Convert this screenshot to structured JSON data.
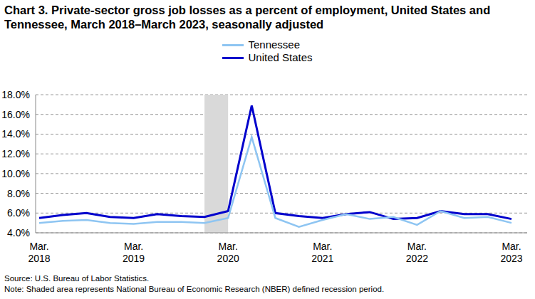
{
  "chart_data": {
    "type": "line",
    "title": "Chart 3. Private-sector gross job losses as a percent of employment, United States and Tennessee, March 2018–March 2023, seasonally adjusted",
    "categories": [
      "Mar. 2018",
      null,
      null,
      null,
      "Mar. 2019",
      null,
      null,
      null,
      "Mar. 2020",
      null,
      null,
      null,
      "Mar. 2021",
      null,
      null,
      null,
      "Mar. 2022",
      null,
      null,
      null,
      "Mar. 2023"
    ],
    "series": [
      {
        "name": "United States",
        "color": "#0000cc",
        "values": [
          5.5,
          5.8,
          6.0,
          5.6,
          5.5,
          5.9,
          5.7,
          5.6,
          6.2,
          16.9,
          6.0,
          5.7,
          5.5,
          5.9,
          6.1,
          5.4,
          5.5,
          6.2,
          5.9,
          5.9,
          5.4
        ]
      },
      {
        "name": "Tennessee",
        "color": "#8ec5f2",
        "values": [
          5.0,
          5.2,
          5.3,
          5.0,
          4.9,
          5.1,
          5.1,
          5.0,
          5.5,
          13.7,
          5.5,
          4.6,
          5.3,
          5.9,
          5.4,
          5.6,
          4.8,
          6.2,
          5.5,
          5.6,
          5.0
        ]
      }
    ],
    "ylim": [
      4,
      18
    ],
    "yticks": [
      {
        "value": 4,
        "label": "4.0%"
      },
      {
        "value": 6,
        "label": "6.0%"
      },
      {
        "value": 8,
        "label": "8.0%"
      },
      {
        "value": 10,
        "label": "10.0%"
      },
      {
        "value": 12,
        "label": "12.0%"
      },
      {
        "value": 14,
        "label": "14.0%"
      },
      {
        "value": 16,
        "label": "16.0%"
      },
      {
        "value": 18,
        "label": "18.0%"
      }
    ],
    "grid": true,
    "legend": "top",
    "recession": [
      7,
      8
    ],
    "source": "Source: U.S. Bureau of Labor Statistics.",
    "note": "Note: Shaded area represents National Bureau of Economic Research (NBER) defined recession period."
  }
}
